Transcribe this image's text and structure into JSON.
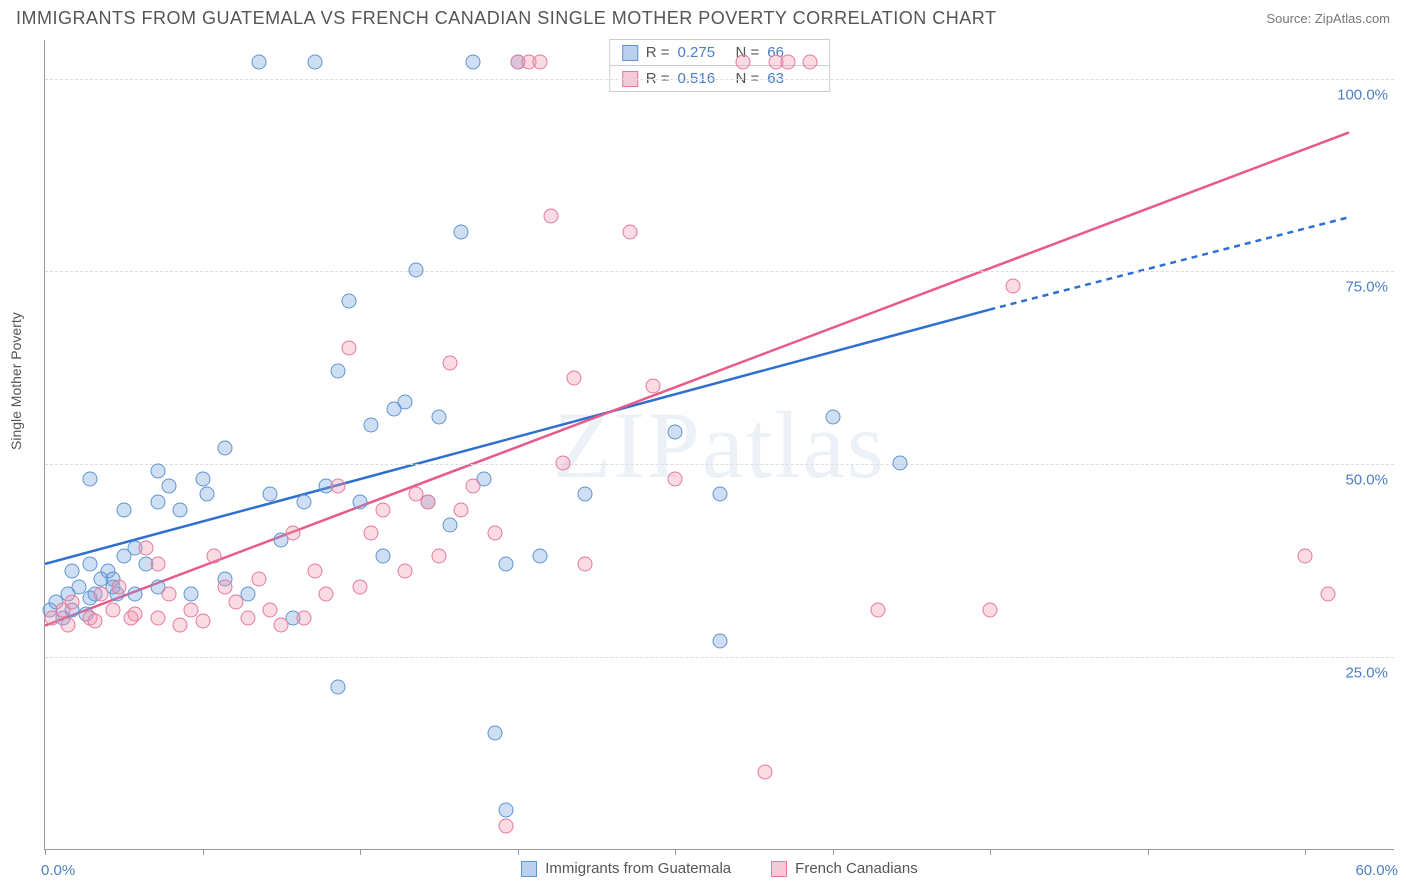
{
  "title": "IMMIGRANTS FROM GUATEMALA VS FRENCH CANADIAN SINGLE MOTHER POVERTY CORRELATION CHART",
  "source": "Source: ZipAtlas.com",
  "ylabel": "Single Mother Poverty",
  "watermark": "ZIPatlas",
  "chart": {
    "type": "scatter",
    "background_color": "#ffffff",
    "grid_color": "#dddddd",
    "axis_color": "#999999",
    "tick_label_color": "#4a7ec7",
    "xlim": [
      0,
      60
    ],
    "ylim": [
      0,
      105
    ],
    "xtick_values": [
      0,
      7,
      14,
      21,
      28,
      35,
      42,
      49,
      56
    ],
    "xtick_labels": {
      "0": "0.0%",
      "60": "60.0%"
    },
    "ytick_values": [
      25,
      50,
      75,
      100
    ],
    "ytick_labels": [
      "25.0%",
      "50.0%",
      "75.0%",
      "100.0%"
    ],
    "marker_size": 15
  },
  "series": [
    {
      "id": "blue",
      "label": "Immigrants from Guatemala",
      "R": "0.275",
      "N": "66",
      "marker_color": "#73a3dd",
      "marker_border": "#5f94d1",
      "line_color": "#2e6fcf",
      "line_width": 2.5,
      "trend_solid": {
        "x1": 0,
        "y1": 37,
        "x2": 42,
        "y2": 70
      },
      "trend_dashed": {
        "x1": 42,
        "y1": 70,
        "x2": 58,
        "y2": 82
      },
      "points": [
        [
          0.2,
          31
        ],
        [
          0.5,
          32
        ],
        [
          0.8,
          30
        ],
        [
          1,
          33
        ],
        [
          1.2,
          31
        ],
        [
          1.5,
          34
        ],
        [
          1.8,
          30.5
        ],
        [
          2,
          32.5
        ],
        [
          2.2,
          33
        ],
        [
          2.5,
          35
        ],
        [
          1.2,
          36
        ],
        [
          2,
          37
        ],
        [
          2.8,
          36
        ],
        [
          3,
          34
        ],
        [
          3.2,
          33
        ],
        [
          3.5,
          38
        ],
        [
          3.5,
          44
        ],
        [
          4,
          39
        ],
        [
          4.5,
          37
        ],
        [
          5,
          45
        ],
        [
          2,
          48
        ],
        [
          3,
          35
        ],
        [
          4,
          33
        ],
        [
          5,
          34
        ],
        [
          5.5,
          47
        ],
        [
          6,
          44
        ],
        [
          6.5,
          33
        ],
        [
          7,
          48
        ],
        [
          7.2,
          46
        ],
        [
          8,
          35
        ],
        [
          5,
          49
        ],
        [
          8,
          52
        ],
        [
          9,
          33
        ],
        [
          9.5,
          102
        ],
        [
          10,
          46
        ],
        [
          10.5,
          40
        ],
        [
          11,
          30
        ],
        [
          11.5,
          45
        ],
        [
          12,
          102
        ],
        [
          12.5,
          47
        ],
        [
          13,
          62
        ],
        [
          13,
          21
        ],
        [
          13.5,
          71
        ],
        [
          14,
          45
        ],
        [
          14.5,
          55
        ],
        [
          15,
          38
        ],
        [
          15.5,
          57
        ],
        [
          16,
          58
        ],
        [
          16.5,
          75
        ],
        [
          17,
          45
        ],
        [
          17.5,
          56
        ],
        [
          18,
          42
        ],
        [
          18.5,
          80
        ],
        [
          19,
          102
        ],
        [
          19.5,
          48
        ],
        [
          20,
          15
        ],
        [
          20.5,
          5
        ],
        [
          20.5,
          37
        ],
        [
          21,
          102
        ],
        [
          22,
          38
        ],
        [
          24,
          46
        ],
        [
          28,
          54
        ],
        [
          30,
          27
        ],
        [
          30,
          46
        ],
        [
          35,
          56
        ],
        [
          38,
          50
        ]
      ]
    },
    {
      "id": "pink",
      "label": "French Canadians",
      "R": "0.516",
      "N": "63",
      "marker_color": "#f094af",
      "marker_border": "#e47a9c",
      "line_color": "#e85a88",
      "line_width": 2.5,
      "trend_solid": {
        "x1": 0,
        "y1": 29,
        "x2": 58,
        "y2": 93
      },
      "trend_dashed": null,
      "points": [
        [
          0.3,
          30
        ],
        [
          0.8,
          31
        ],
        [
          1,
          29
        ],
        [
          1.2,
          32
        ],
        [
          2,
          30
        ],
        [
          2.2,
          29.5
        ],
        [
          2.5,
          33
        ],
        [
          3,
          31
        ],
        [
          3.3,
          34
        ],
        [
          3.8,
          30
        ],
        [
          4,
          30.5
        ],
        [
          4.5,
          39
        ],
        [
          5,
          37
        ],
        [
          5,
          30
        ],
        [
          5.5,
          33
        ],
        [
          6,
          29
        ],
        [
          6.5,
          31
        ],
        [
          7,
          29.5
        ],
        [
          7.5,
          38
        ],
        [
          8,
          34
        ],
        [
          8.5,
          32
        ],
        [
          9,
          30
        ],
        [
          9.5,
          35
        ],
        [
          10,
          31
        ],
        [
          10.5,
          29
        ],
        [
          11,
          41
        ],
        [
          11.5,
          30
        ],
        [
          12,
          36
        ],
        [
          12.5,
          33
        ],
        [
          13,
          47
        ],
        [
          13.5,
          65
        ],
        [
          14,
          34
        ],
        [
          14.5,
          41
        ],
        [
          15,
          44
        ],
        [
          16,
          36
        ],
        [
          16.5,
          46
        ],
        [
          17,
          45
        ],
        [
          17.5,
          38
        ],
        [
          18,
          63
        ],
        [
          18.5,
          44
        ],
        [
          19,
          47
        ],
        [
          20,
          41
        ],
        [
          20.5,
          3
        ],
        [
          21,
          102
        ],
        [
          21.5,
          102
        ],
        [
          22,
          102
        ],
        [
          22.5,
          82
        ],
        [
          23,
          50
        ],
        [
          23.5,
          61
        ],
        [
          24,
          37
        ],
        [
          26,
          80
        ],
        [
          27,
          60
        ],
        [
          28,
          48
        ],
        [
          31,
          102
        ],
        [
          32,
          10
        ],
        [
          32.5,
          102
        ],
        [
          33,
          102
        ],
        [
          34,
          102
        ],
        [
          37,
          31
        ],
        [
          42,
          31
        ],
        [
          43,
          73
        ],
        [
          56,
          38
        ],
        [
          57,
          33
        ]
      ]
    }
  ]
}
